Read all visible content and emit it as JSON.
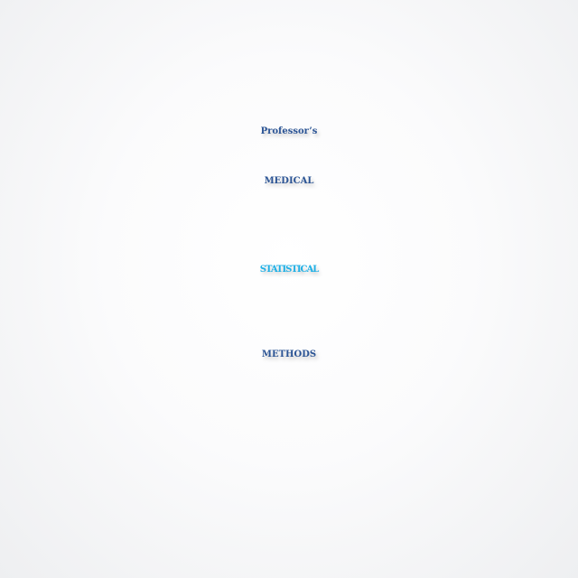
{
  "logo": {
    "subtitle": "Professor’s",
    "line1": "MEDICAL",
    "line2": "STATISTICAL",
    "line3": "METHODS"
  },
  "colors": {
    "dark_blue": "#2b5495",
    "light_blue": "#1fb0e6",
    "background": "#f8f8f9"
  }
}
